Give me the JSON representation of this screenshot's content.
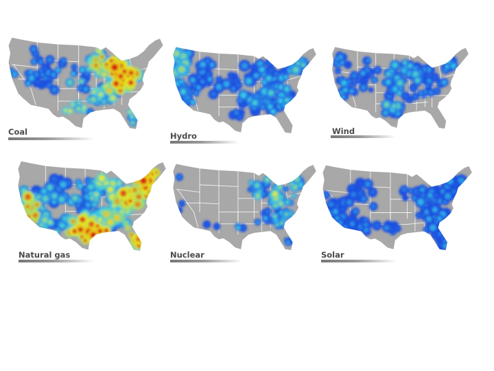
{
  "panels": [
    {
      "id": "coal",
      "label": "Coal",
      "heat": "high"
    },
    {
      "id": "hydro",
      "label": "Hydro",
      "heat": "low"
    },
    {
      "id": "wind",
      "label": "Wind",
      "heat": "low"
    },
    {
      "id": "natural-gas",
      "label": "Natural gas",
      "heat": "high"
    },
    {
      "id": "nuclear",
      "label": "Nuclear",
      "heat": "medium"
    },
    {
      "id": "solar",
      "label": "Solar",
      "heat": "low"
    }
  ],
  "colors": {
    "land": "#a8a8a8",
    "state_lines": "#ffffff",
    "heat_low": "#1f4fe0",
    "heat_mid": "#33c8e8",
    "heat_high": "#e8e81e",
    "heat_peak": "#d81e10",
    "label_text": "#4a4a4a"
  }
}
